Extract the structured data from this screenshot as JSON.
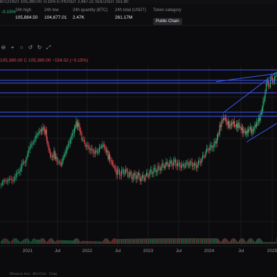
{
  "ticker_strip": "BTCUSDT  105,390.00  -0.15%  ETHUSDT  2,487.21  SOLUSDT  151.80",
  "stats": [
    {
      "label": "",
      "value": "-0.15%"
    },
    {
      "label": "24h high",
      "value": "105,884.50"
    },
    {
      "label": "24h low",
      "value": "104,677.01"
    },
    {
      "label": "24h quantity (BTC)",
      "value": "2.47K"
    },
    {
      "label": "24h total (USDT)",
      "value": "261.17M"
    },
    {
      "label": "Token category",
      "badge": "Public Chain"
    }
  ],
  "toolbar_icons": [
    "minus-circle-icon",
    "pointer-icon",
    "circle-icon",
    "undo-icon",
    "redo-icon",
    "fullscreen-icon"
  ],
  "ohlc": {
    "text": "105,380.00  C 105,390.00  −154.02 (−0.15%)"
  },
  "x_axis": {
    "labels": [
      "2021",
      "Jul",
      "2022",
      "Jul",
      "2023",
      "Jul",
      "2024",
      "Jul",
      "2025"
    ]
  },
  "colors": {
    "background": "#0b0b0d",
    "up": "#2eb67d",
    "down": "#e0484f",
    "trend_line": "#3f5bff",
    "grid": "#1b1b20",
    "axis_text": "#9a9a9a"
  },
  "footer": "Measure tool · Alt+Click · Drag"
}
